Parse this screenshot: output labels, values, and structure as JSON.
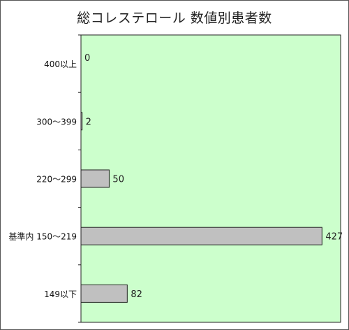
{
  "chart_data": {
    "type": "bar",
    "orientation": "horizontal",
    "title": "総コレステロール 数値別患者数",
    "categories": [
      "400以上",
      "300～399",
      "220～299",
      "基準内 150～219",
      "149以下"
    ],
    "values": [
      0,
      2,
      50,
      427,
      82
    ],
    "xlim": [
      0,
      460
    ],
    "xlabel": "",
    "ylabel": "",
    "grid": false,
    "legend": "none",
    "colors": {
      "plot_bg": "#ccffcc",
      "bar_fill": "#c0c0c0",
      "bar_stroke": "#222222"
    }
  }
}
